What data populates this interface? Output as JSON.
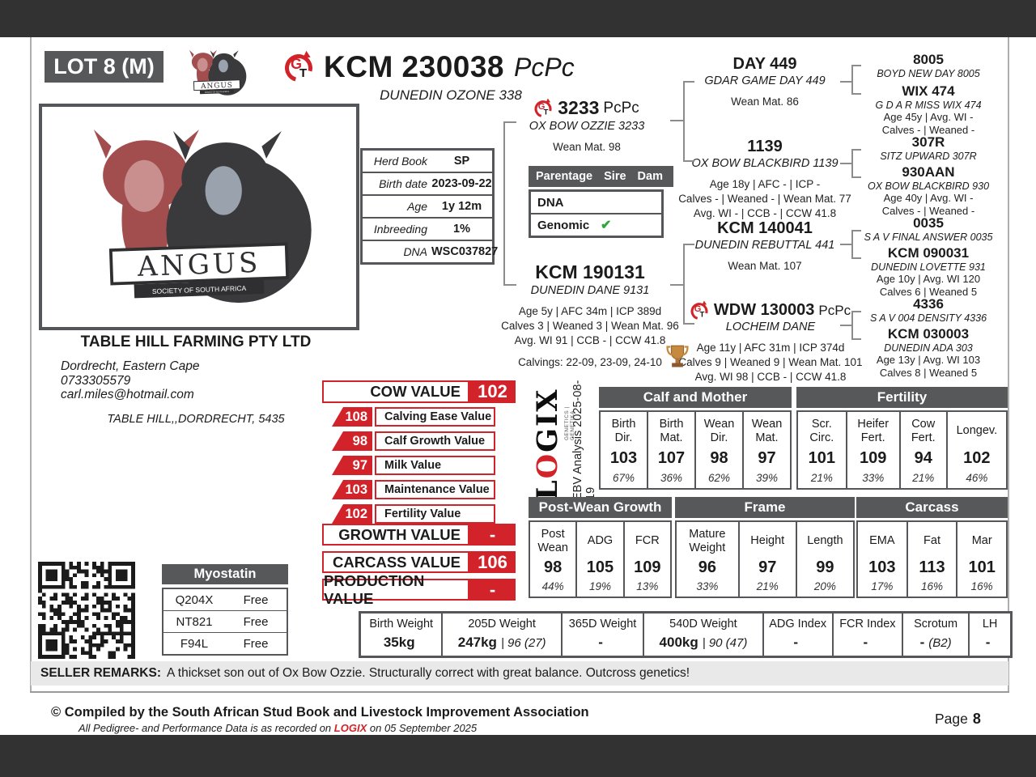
{
  "colors": {
    "accent_red": "#d2232a",
    "header_gray": "#57585a",
    "band_dark": "#323232",
    "check_green": "#2fa63c"
  },
  "page": {
    "lot": "LOT 8 (M)",
    "id": "KCM 230038",
    "suffix": "PcPc",
    "name": "DUNEDIN OZONE 338"
  },
  "icons": {
    "gt_g": "G",
    "gt_t": "T"
  },
  "logos": {
    "angus": "ANGUS",
    "angus_sub": "SOCIETY OF SOUTH AFRICA",
    "logix_pre": "L",
    "logix_o": "O",
    "logix_post": "GIX",
    "logix_tag": "GENETICS | GENETIKA",
    "ebv_analysis": "EBV Analysis 2025-08-19"
  },
  "breeder": {
    "name": "TABLE HILL FARMING PTY LTD",
    "location": "Dordrecht, Eastern Cape",
    "phone": "0733305579",
    "email": "carl.miles@hotmail.com",
    "address": "TABLE HILL,,DORDRECHT, 5435"
  },
  "herd_info": {
    "rows": [
      {
        "label": "Herd Book",
        "value": "SP"
      },
      {
        "label": "Birth date",
        "value": "2023-09-22"
      },
      {
        "label": "Age",
        "value": "1y 12m"
      },
      {
        "label": "Inbreeding",
        "value": "1%"
      },
      {
        "label": "DNA",
        "value": "WSC037827"
      }
    ]
  },
  "parentage": {
    "title": "Parentage",
    "col_sire": "Sire",
    "col_dam": "Dam",
    "rows": [
      {
        "label": "DNA",
        "sire": "",
        "dam": ""
      },
      {
        "label": "Genomic",
        "sire": "✔",
        "dam": ""
      }
    ]
  },
  "pedigree": {
    "sire": {
      "id": "3233",
      "suffix": "PcPc",
      "name": "OX BOW OZZIE 3233",
      "stats": [
        "Wean Mat. 98"
      ]
    },
    "dam": {
      "id": "KCM 190131",
      "name": "DUNEDIN DANE 9131",
      "stats": [
        "Age 5y | AFC 34m | ICP 389d",
        "Calves 3 | Weaned 3 | Wean Mat. 96",
        "Avg. WI 91 | CCB - | CCW 41.8"
      ],
      "calvings": "Calvings: 22-09, 23-09, 24-10"
    },
    "sire_sire": {
      "id": "DAY 449",
      "name": "GDAR GAME DAY 449",
      "stats": [
        "Wean Mat. 86"
      ]
    },
    "sire_dam": {
      "id": "1139",
      "name": "OX BOW BLACKBIRD 1139",
      "stats": [
        "Age 18y | AFC - | ICP -",
        "Calves - | Weaned - | Wean Mat. 77",
        "Avg. WI - | CCB - | CCW 41.8"
      ]
    },
    "dam_sire": {
      "id": "KCM 140041",
      "name": "DUNEDIN REBUTTAL 441",
      "stats": [
        "Wean Mat. 107"
      ]
    },
    "dam_dam": {
      "id": "WDW 130003",
      "suffix": "PcPc",
      "name": "LOCHEIM DANE",
      "stats": [
        "Age 11y | AFC 31m | ICP 374d",
        "Calves 9 | Weaned 9 | Wean Mat. 101",
        "Avg. WI 98 | CCB - | CCW 41.8"
      ]
    },
    "gg": [
      {
        "id": "8005",
        "name": "BOYD NEW DAY 8005"
      },
      {
        "id": "WIX 474",
        "name": "G D A R MISS WIX 474",
        "stats": [
          "Age 45y | Avg. WI -",
          "Calves - | Weaned -"
        ]
      },
      {
        "id": "307R",
        "name": "SITZ UPWARD 307R"
      },
      {
        "id": "930AAN",
        "name": "OX BOW BLACKBIRD 930",
        "stats": [
          "Age 40y | Avg. WI -",
          "Calves - | Weaned -"
        ]
      },
      {
        "id": "0035",
        "name": "S A V FINAL ANSWER 0035"
      },
      {
        "id": "KCM 090031",
        "name": "DUNEDIN LOVETTE 931",
        "stats": [
          "Age 10y | Avg. WI 120",
          "Calves 6 | Weaned 5"
        ]
      },
      {
        "id": "4336",
        "name": "S A V 004 DENSITY 4336"
      },
      {
        "id": "KCM 030003",
        "name": "DUNEDIN ADA 303",
        "stats": [
          "Age 13y | Avg. WI 103",
          "Calves 8 | Weaned 5"
        ]
      }
    ]
  },
  "values": {
    "cow": {
      "label": "COW VALUE",
      "value": "102"
    },
    "rows": [
      {
        "value": "108",
        "label": "Calving Ease Value"
      },
      {
        "value": "98",
        "label": "Calf Growth Value"
      },
      {
        "value": "97",
        "label": "Milk Value"
      },
      {
        "value": "103",
        "label": "Maintenance Value"
      },
      {
        "value": "102",
        "label": "Fertility Value"
      }
    ],
    "growth": {
      "label": "GROWTH VALUE",
      "value": "-"
    },
    "carcass": {
      "label": "CARCASS VALUE",
      "value": "106"
    },
    "production": {
      "label": "PRODUCTION VALUE",
      "value": "-"
    }
  },
  "ebv": {
    "calf_mother": {
      "title": "Calf and Mother",
      "cells": [
        {
          "h1": "Birth",
          "h2": "Dir.",
          "v": "103",
          "p": "67%"
        },
        {
          "h1": "Birth",
          "h2": "Mat.",
          "v": "107",
          "p": "36%"
        },
        {
          "h1": "Wean",
          "h2": "Dir.",
          "v": "98",
          "p": "62%"
        },
        {
          "h1": "Wean",
          "h2": "Mat.",
          "v": "97",
          "p": "39%"
        }
      ]
    },
    "fertility": {
      "title": "Fertility",
      "cells": [
        {
          "h1": "Scr.",
          "h2": "Circ.",
          "v": "101",
          "p": "21%"
        },
        {
          "h1": "Heifer",
          "h2": "Fert.",
          "v": "109",
          "p": "33%"
        },
        {
          "h1": "Cow",
          "h2": "Fert.",
          "v": "94",
          "p": "21%"
        },
        {
          "h1": "Longev.",
          "v": "102",
          "p": "46%"
        }
      ]
    },
    "post_wean": {
      "title": "Post-Wean Growth",
      "cells": [
        {
          "h1": "Post",
          "h2": "Wean",
          "v": "98",
          "p": "44%"
        },
        {
          "h1": "ADG",
          "v": "105",
          "p": "19%"
        },
        {
          "h1": "FCR",
          "v": "109",
          "p": "13%"
        }
      ]
    },
    "frame": {
      "title": "Frame",
      "cells": [
        {
          "h1": "Mature",
          "h2": "Weight",
          "v": "96",
          "p": "33%"
        },
        {
          "h1": "Height",
          "v": "97",
          "p": "21%"
        },
        {
          "h1": "Length",
          "v": "99",
          "p": "20%"
        }
      ]
    },
    "carcass": {
      "title": "Carcass",
      "cells": [
        {
          "h1": "EMA",
          "v": "103",
          "p": "17%"
        },
        {
          "h1": "Fat",
          "v": "113",
          "p": "16%"
        },
        {
          "h1": "Mar",
          "v": "101",
          "p": "16%"
        }
      ]
    }
  },
  "myostatin": {
    "title": "Myostatin",
    "rows": [
      {
        "gene": "Q204X",
        "status": "Free"
      },
      {
        "gene": "NT821",
        "status": "Free"
      },
      {
        "gene": "F94L",
        "status": "Free"
      }
    ]
  },
  "weights": {
    "cols": [
      {
        "h": "Birth Weight",
        "v": "35kg"
      },
      {
        "h": "205D Weight",
        "v": "247kg",
        "extra": "| 96 (27)"
      },
      {
        "h": "365D Weight",
        "v": "-"
      },
      {
        "h": "540D Weight",
        "v": "400kg",
        "extra": "| 90 (47)"
      },
      {
        "h": "ADG Index",
        "v": "-"
      },
      {
        "h": "FCR Index",
        "v": "-"
      },
      {
        "h": "Scrotum",
        "v": "-",
        "extra": "(B2)"
      },
      {
        "h": "LH",
        "v": "-"
      }
    ]
  },
  "remarks": {
    "label": "SELLER REMARKS:",
    "text": "A thickset son out of Ox Bow Ozzie. Structurally correct with great balance. Outcross genetics!"
  },
  "footer": {
    "line1": "© Compiled by the South African Stud Book and Livestock Improvement Association",
    "line2_pre": "All Pedigree- and Performance Data is as recorded on",
    "logix": "LOGIX",
    "line2_post": "on 05 September 2025",
    "page_label": "Page",
    "page_num": "8"
  }
}
